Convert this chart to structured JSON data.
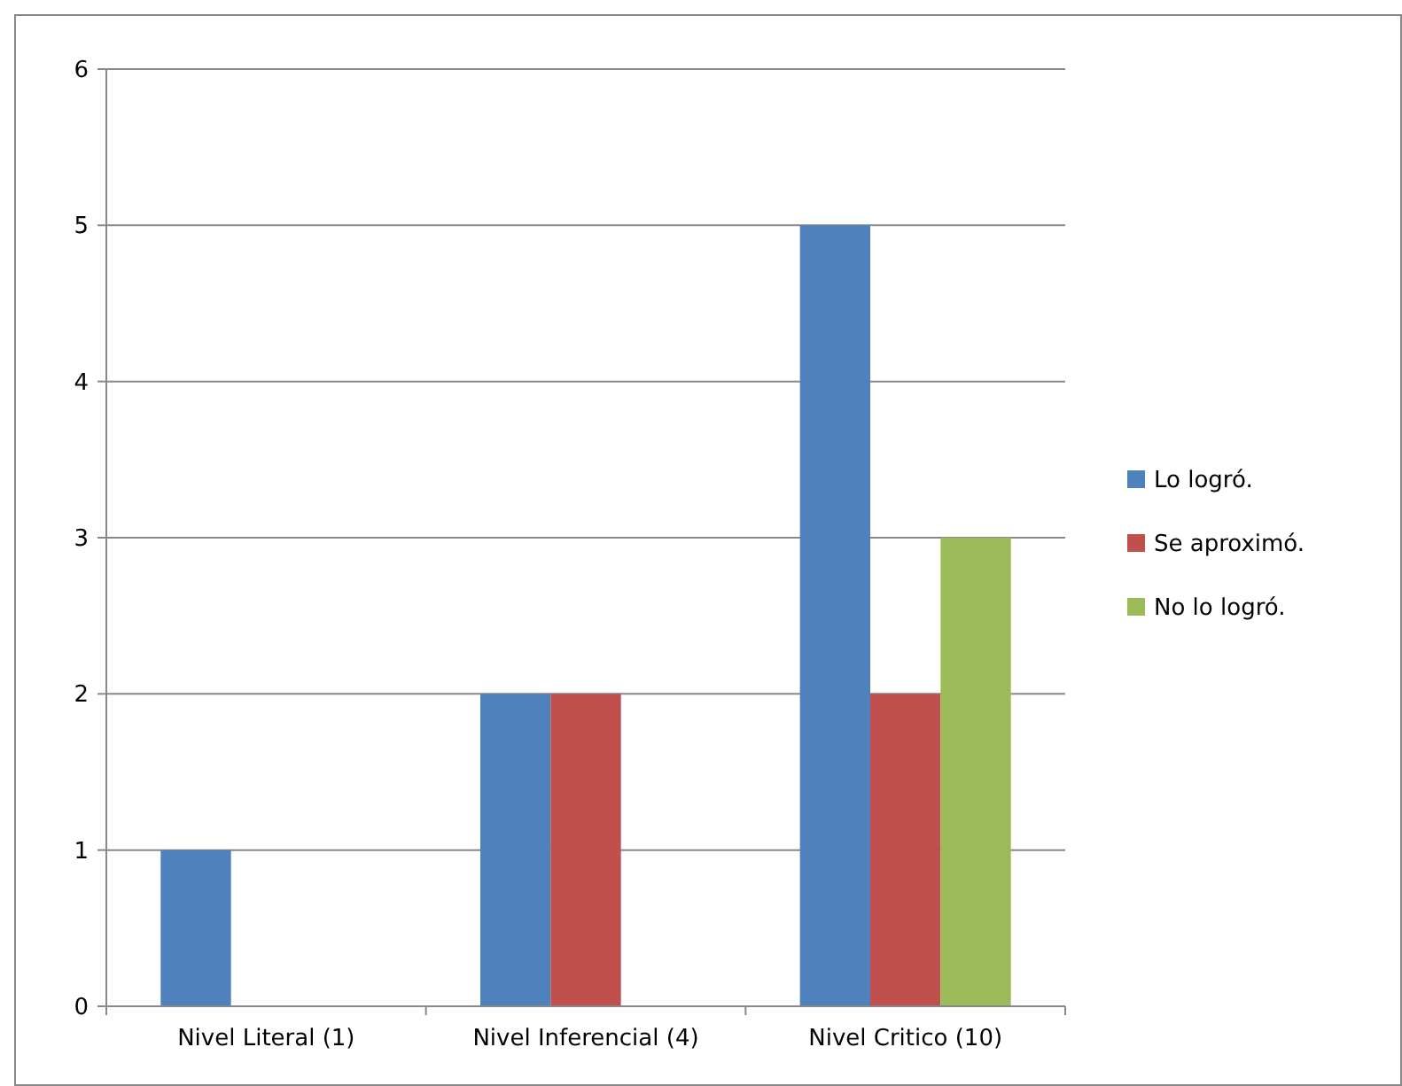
{
  "chart_data": {
    "type": "bar",
    "categories": [
      "Nivel Literal (1)",
      "Nivel Inferencial (4)",
      "Nivel Critico (10)"
    ],
    "series": [
      {
        "name": "Lo logró.",
        "color": "#4f81bd",
        "values": [
          1,
          2,
          5
        ]
      },
      {
        "name": "Se aproximó.",
        "color": "#c0504d",
        "values": [
          0,
          2,
          2
        ]
      },
      {
        "name": "No lo logró.",
        "color": "#9bbb59",
        "values": [
          0,
          0,
          3
        ]
      }
    ],
    "ylim": [
      0,
      6
    ],
    "yticks": [
      0,
      1,
      2,
      3,
      4,
      5,
      6
    ],
    "grid": "y",
    "legend": "right"
  }
}
